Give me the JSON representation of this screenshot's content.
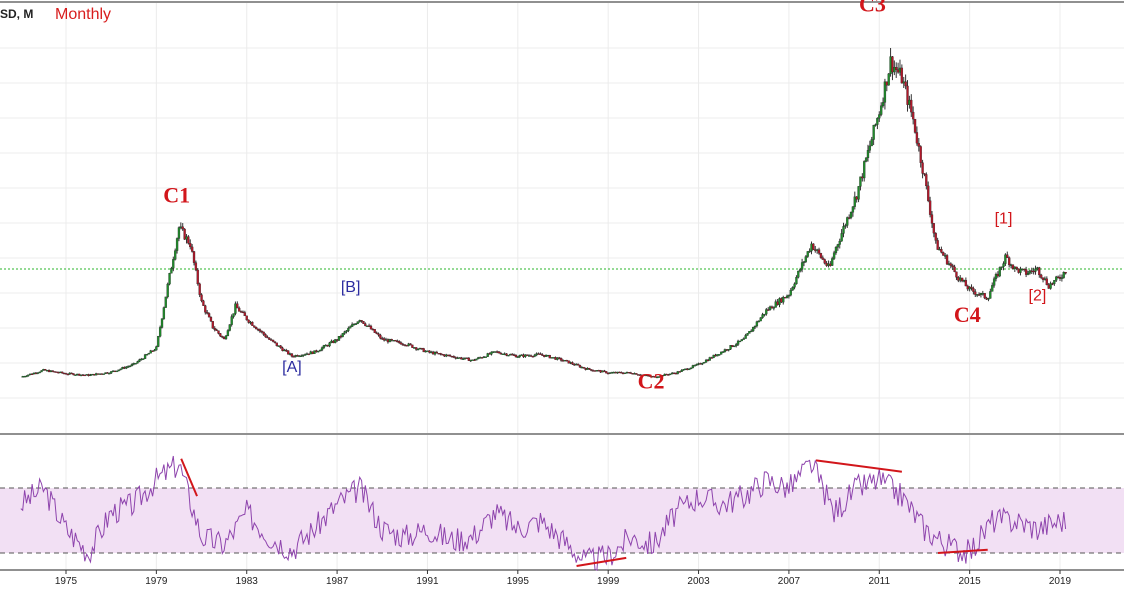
{
  "header": {
    "symbol": "SD, M",
    "timeframe": "Monthly"
  },
  "colors": {
    "up": "#1f8a2a",
    "down": "#b0182a",
    "rsi": "#8e44ad",
    "rsi_band": "#f2e0f4",
    "level": "#2bb52b",
    "annotation": "#d2161b"
  },
  "chart_data": {
    "type": "candlestick",
    "price_panel": {
      "reference_level": 17.0,
      "series": [
        [
          1973.0,
          4.0
        ],
        [
          1974.0,
          4.8
        ],
        [
          1975.0,
          4.4
        ],
        [
          1976.0,
          4.2
        ],
        [
          1977.0,
          4.6
        ],
        [
          1978.0,
          5.5
        ],
        [
          1979.0,
          7.5
        ],
        [
          1979.5,
          15.0
        ],
        [
          1980.0,
          22.0
        ],
        [
          1980.5,
          20.0
        ],
        [
          1981.0,
          13.0
        ],
        [
          1981.5,
          10.0
        ],
        [
          1982.0,
          8.5
        ],
        [
          1982.5,
          12.5
        ],
        [
          1983.0,
          11.0
        ],
        [
          1984.0,
          8.5
        ],
        [
          1985.0,
          6.5
        ],
        [
          1986.0,
          7.0
        ],
        [
          1987.0,
          8.5
        ],
        [
          1988.0,
          11.0
        ],
        [
          1989.0,
          8.5
        ],
        [
          1990.0,
          8.0
        ],
        [
          1991.0,
          7.0
        ],
        [
          1992.0,
          6.5
        ],
        [
          1993.0,
          6.0
        ],
        [
          1994.0,
          7.0
        ],
        [
          1995.0,
          6.5
        ],
        [
          1996.0,
          6.7
        ],
        [
          1997.0,
          6.0
        ],
        [
          1998.0,
          5.0
        ],
        [
          1999.0,
          4.5
        ],
        [
          2000.0,
          4.5
        ],
        [
          2001.0,
          4.0
        ],
        [
          2002.0,
          4.5
        ],
        [
          2003.0,
          5.5
        ],
        [
          2004.0,
          7.0
        ],
        [
          2005.0,
          8.5
        ],
        [
          2006.0,
          12.0
        ],
        [
          2007.0,
          14.0
        ],
        [
          2008.0,
          20.0
        ],
        [
          2008.8,
          17.0
        ],
        [
          2009.0,
          19.0
        ],
        [
          2010.0,
          26.0
        ],
        [
          2011.0,
          36.0
        ],
        [
          2011.5,
          42.0
        ],
        [
          2012.0,
          40.0
        ],
        [
          2012.5,
          35.0
        ],
        [
          2013.0,
          28.0
        ],
        [
          2013.5,
          20.0
        ],
        [
          2014.0,
          18.0
        ],
        [
          2014.5,
          16.0
        ],
        [
          2015.0,
          14.5
        ],
        [
          2015.8,
          13.5
        ],
        [
          2016.0,
          15.0
        ],
        [
          2016.6,
          18.5
        ],
        [
          2017.0,
          17.0
        ],
        [
          2017.5,
          16.5
        ],
        [
          2018.0,
          17.0
        ],
        [
          2018.5,
          15.0
        ],
        [
          2019.0,
          16.0
        ],
        [
          2019.3,
          17.0
        ]
      ]
    },
    "rsi_panel": {
      "upper_level": 70,
      "lower_level": 30,
      "series": [
        [
          1973.0,
          60
        ],
        [
          1974.0,
          70
        ],
        [
          1975.0,
          45
        ],
        [
          1976.0,
          30
        ],
        [
          1977.0,
          55
        ],
        [
          1978.0,
          60
        ],
        [
          1979.0,
          75
        ],
        [
          1980.0,
          85
        ],
        [
          1981.0,
          40
        ],
        [
          1982.0,
          35
        ],
        [
          1983.0,
          55
        ],
        [
          1984.0,
          40
        ],
        [
          1985.0,
          32
        ],
        [
          1986.0,
          45
        ],
        [
          1987.0,
          60
        ],
        [
          1988.0,
          70
        ],
        [
          1989.0,
          45
        ],
        [
          1990.0,
          40
        ],
        [
          1991.0,
          45
        ],
        [
          1992.0,
          38
        ],
        [
          1993.0,
          40
        ],
        [
          1994.0,
          55
        ],
        [
          1995.0,
          45
        ],
        [
          1996.0,
          50
        ],
        [
          1997.0,
          38
        ],
        [
          1998.0,
          25
        ],
        [
          1999.0,
          28
        ],
        [
          2000.0,
          40
        ],
        [
          2001.0,
          35
        ],
        [
          2002.0,
          55
        ],
        [
          2003.0,
          65
        ],
        [
          2004.0,
          60
        ],
        [
          2005.0,
          65
        ],
        [
          2006.0,
          75
        ],
        [
          2007.0,
          70
        ],
        [
          2008.0,
          85
        ],
        [
          2009.0,
          55
        ],
        [
          2010.0,
          70
        ],
        [
          2011.0,
          75
        ],
        [
          2012.0,
          65
        ],
        [
          2013.0,
          45
        ],
        [
          2014.0,
          35
        ],
        [
          2015.0,
          30
        ],
        [
          2016.0,
          50
        ],
        [
          2017.0,
          50
        ],
        [
          2018.0,
          45
        ],
        [
          2019.0,
          50
        ]
      ],
      "divergences": [
        {
          "from": [
            1980.1,
            88
          ],
          "to": [
            1980.8,
            65
          ]
        },
        {
          "from": [
            1997.6,
            22
          ],
          "to": [
            1999.8,
            27
          ]
        },
        {
          "from": [
            2008.2,
            87
          ],
          "to": [
            2012.0,
            80
          ]
        },
        {
          "from": [
            2013.6,
            30
          ],
          "to": [
            2015.8,
            32
          ]
        }
      ]
    },
    "x_ticks": [
      "1975",
      "1979",
      "1983",
      "1987",
      "1991",
      "1995",
      "1999",
      "2003",
      "2007",
      "2011",
      "2015",
      "2019"
    ],
    "wave_labels": [
      {
        "text": "C1",
        "style": "major",
        "x": 1979.9,
        "y": 25.0
      },
      {
        "text": "[A]",
        "style": "blue",
        "x": 1985.0,
        "y": 4.6
      },
      {
        "text": "[B]",
        "style": "blue",
        "x": 1987.6,
        "y": 14.2
      },
      {
        "text": "C2",
        "style": "major",
        "x": 2000.9,
        "y": 2.6
      },
      {
        "text": "C3",
        "style": "major",
        "x": 2010.7,
        "y": 48.0
      },
      {
        "text": "[1]",
        "style": "red",
        "x": 2016.5,
        "y": 22.5
      },
      {
        "text": "C4",
        "style": "major",
        "x": 2014.9,
        "y": 10.6
      },
      {
        "text": "[2]",
        "style": "red",
        "x": 2018.0,
        "y": 13.2
      }
    ]
  }
}
